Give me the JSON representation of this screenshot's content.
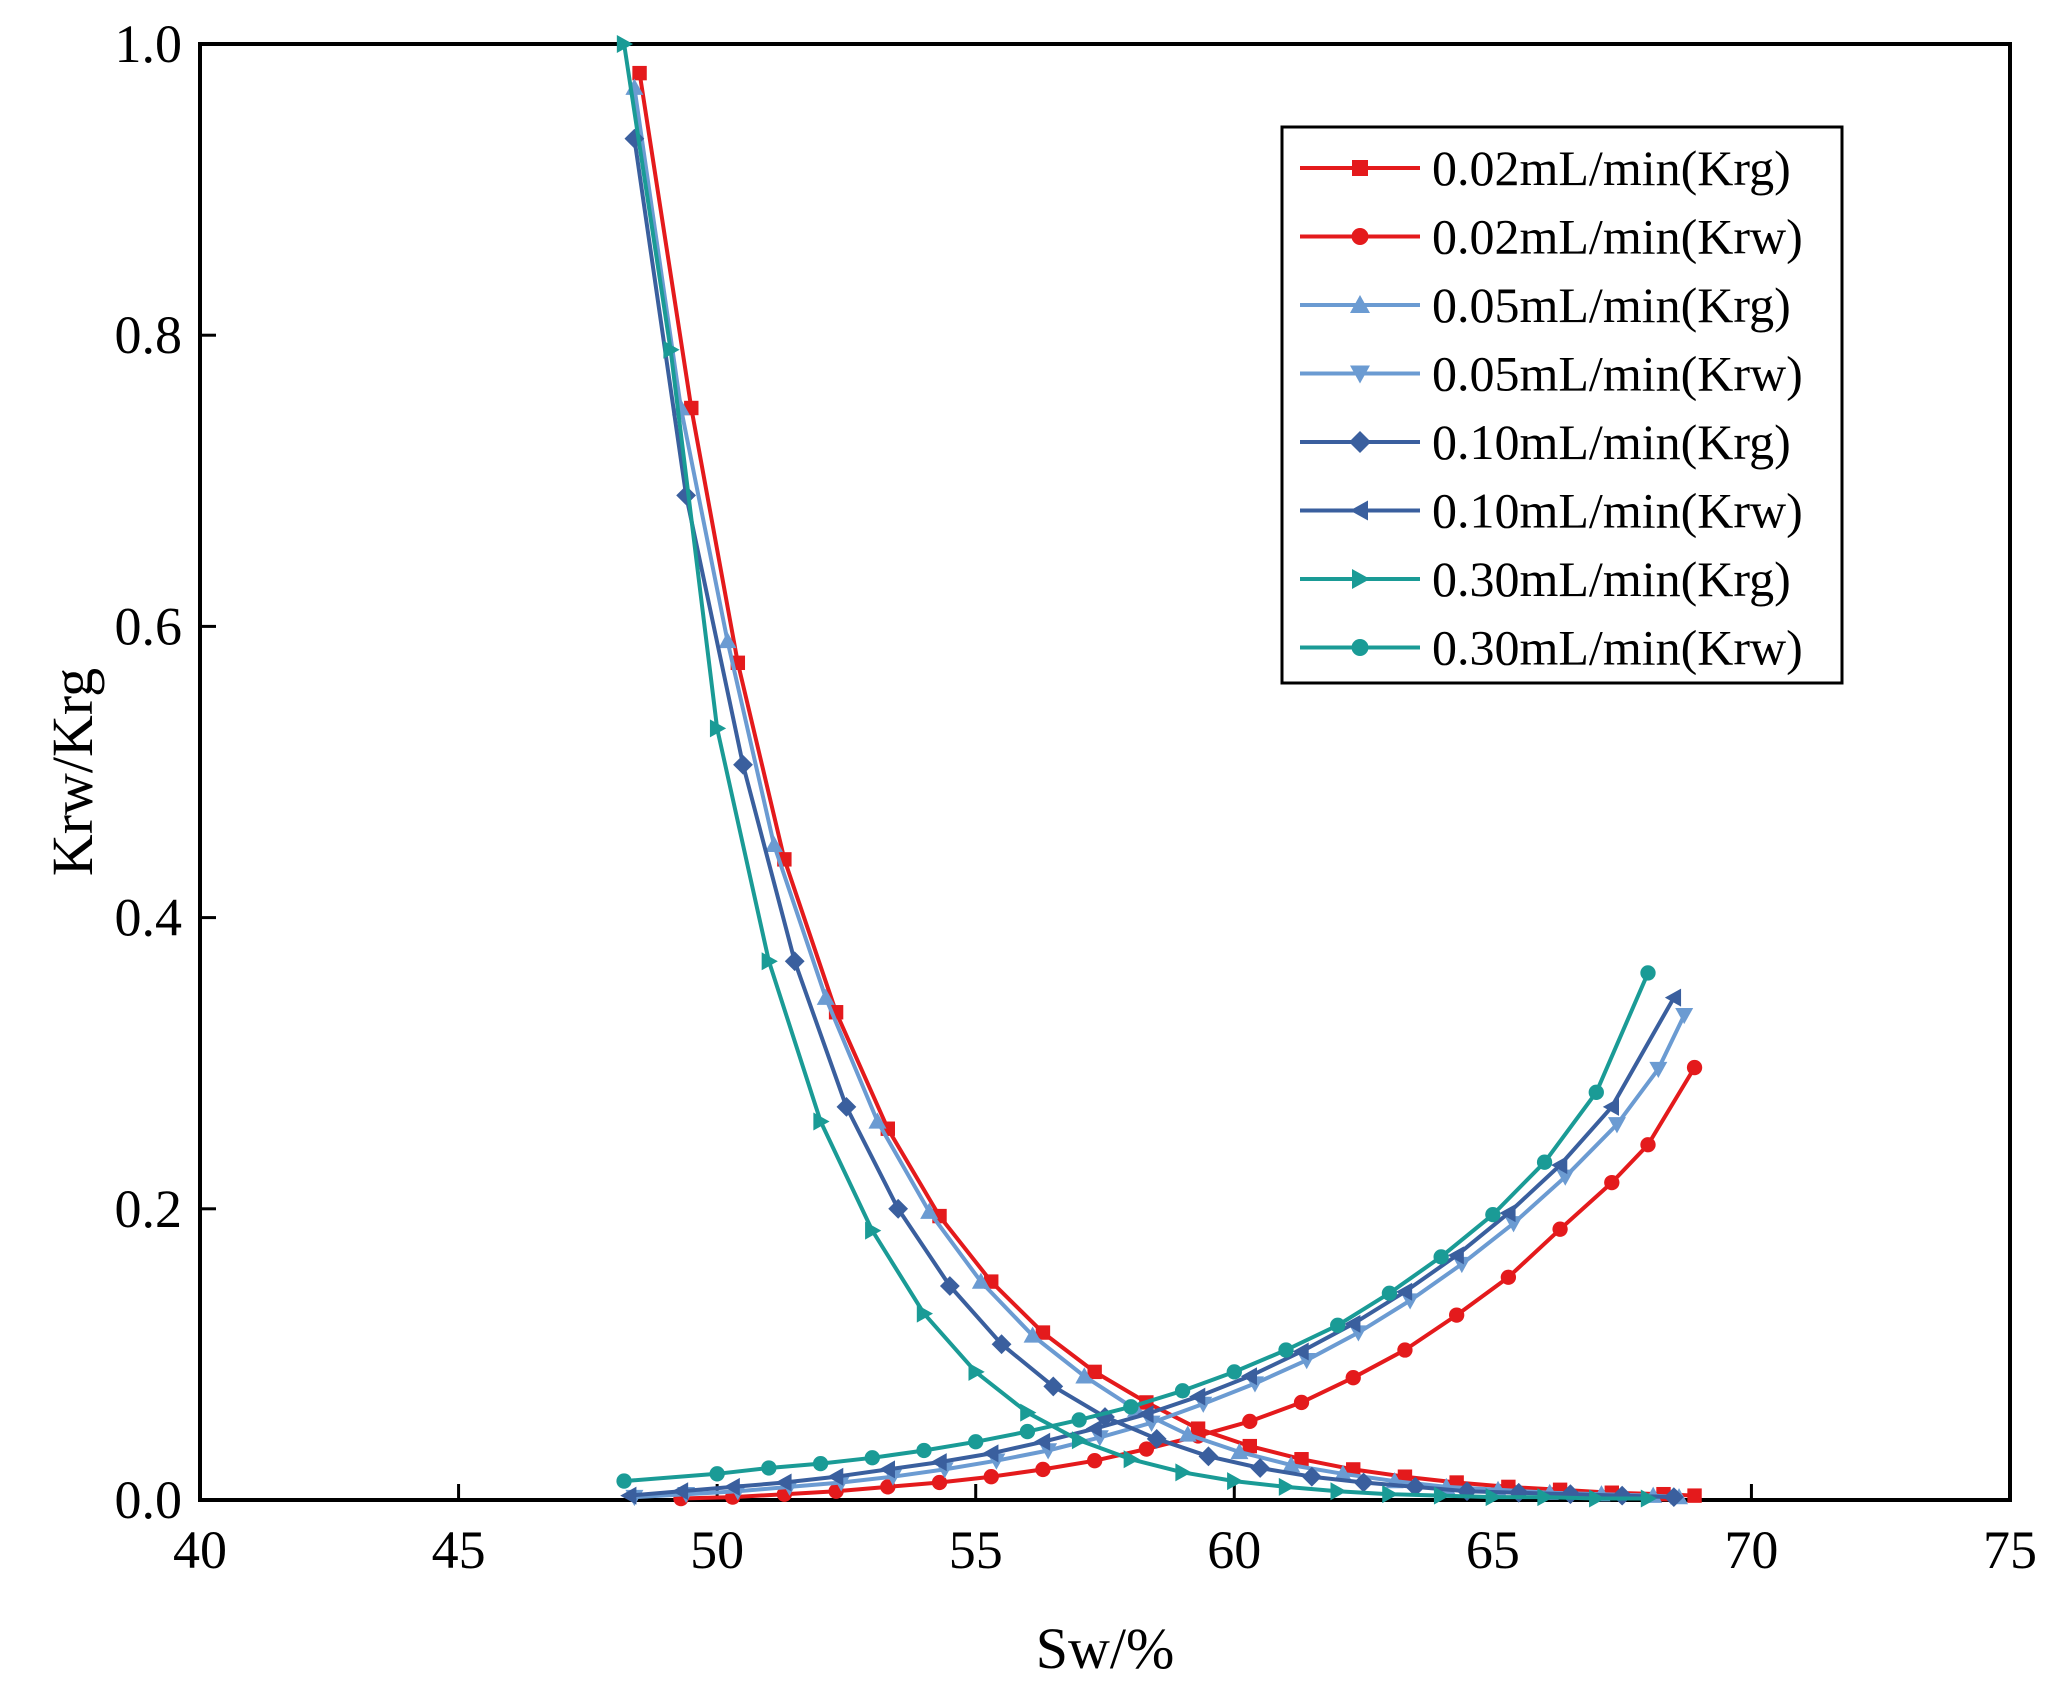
{
  "chart_data": {
    "type": "line",
    "title": "",
    "xlabel": "Sw/%",
    "ylabel": "Krw/Krg",
    "xlim": [
      40,
      75
    ],
    "ylim": [
      0.0,
      1.0
    ],
    "xticks": [
      40,
      45,
      50,
      55,
      60,
      65,
      70,
      75
    ],
    "xtick_labels": [
      "40",
      "45",
      "50",
      "55",
      "60",
      "65",
      "70",
      "75"
    ],
    "yticks": [
      0.0,
      0.2,
      0.4,
      0.6,
      0.8,
      1.0
    ],
    "ytick_labels": [
      "0.0",
      "0.2",
      "0.4",
      "0.6",
      "0.8",
      "1.0"
    ],
    "grid": false,
    "legend_position": "top-right",
    "series": [
      {
        "name": "0.02mL/min(Krg)",
        "color": "#e41a1c",
        "marker": "square",
        "x": [
          48.5,
          49.5,
          50.4,
          51.3,
          52.3,
          53.3,
          54.3,
          55.3,
          56.3,
          57.3,
          58.3,
          59.3,
          60.3,
          61.3,
          62.3,
          63.3,
          64.3,
          65.3,
          66.3,
          67.3,
          68.3,
          68.9
        ],
        "y": [
          0.98,
          0.75,
          0.575,
          0.44,
          0.335,
          0.255,
          0.195,
          0.15,
          0.115,
          0.088,
          0.067,
          0.049,
          0.037,
          0.028,
          0.021,
          0.016,
          0.012,
          0.009,
          0.007,
          0.005,
          0.004,
          0.003
        ]
      },
      {
        "name": "0.02mL/min(Krw)",
        "color": "#e41a1c",
        "marker": "circle",
        "x": [
          49.3,
          50.3,
          51.3,
          52.3,
          53.3,
          54.3,
          55.3,
          56.3,
          57.3,
          58.3,
          59.3,
          60.3,
          61.3,
          62.3,
          63.3,
          64.3,
          65.3,
          66.3,
          67.3,
          68.0,
          68.9
        ],
        "y": [
          0.001,
          0.002,
          0.004,
          0.006,
          0.009,
          0.012,
          0.016,
          0.021,
          0.027,
          0.035,
          0.044,
          0.054,
          0.067,
          0.084,
          0.103,
          0.127,
          0.153,
          0.186,
          0.218,
          0.244,
          0.297
        ]
      },
      {
        "name": "0.05mL/min(Krg)",
        "color": "#6b9bd2",
        "marker": "triangle-up",
        "x": [
          48.4,
          49.3,
          50.2,
          51.1,
          52.1,
          53.1,
          54.1,
          55.1,
          56.1,
          57.1,
          58.1,
          59.1,
          60.1,
          61.1,
          62.1,
          63.1,
          64.1,
          65.1,
          66.1,
          67.1,
          68.1,
          68.6
        ],
        "y": [
          0.97,
          0.75,
          0.59,
          0.45,
          0.345,
          0.26,
          0.198,
          0.15,
          0.113,
          0.085,
          0.062,
          0.045,
          0.033,
          0.024,
          0.018,
          0.013,
          0.009,
          0.007,
          0.005,
          0.004,
          0.003,
          0.002
        ]
      },
      {
        "name": "0.05mL/min(Krw)",
        "color": "#6b9bd2",
        "marker": "triangle-down",
        "x": [
          48.4,
          49.4,
          50.4,
          51.4,
          52.4,
          53.4,
          54.4,
          55.4,
          56.4,
          57.4,
          58.4,
          59.4,
          60.4,
          61.4,
          62.4,
          63.4,
          64.4,
          65.4,
          66.4,
          67.4,
          68.2,
          68.7
        ],
        "y": [
          0.002,
          0.004,
          0.006,
          0.009,
          0.012,
          0.016,
          0.021,
          0.027,
          0.034,
          0.043,
          0.053,
          0.066,
          0.08,
          0.096,
          0.115,
          0.137,
          0.162,
          0.19,
          0.222,
          0.258,
          0.296,
          0.333
        ]
      },
      {
        "name": "0.10mL/min(Krg)",
        "color": "#3a5f9e",
        "marker": "diamond",
        "x": [
          48.4,
          49.4,
          50.5,
          51.5,
          52.5,
          53.5,
          54.5,
          55.5,
          56.5,
          57.5,
          58.5,
          59.5,
          60.5,
          61.5,
          62.5,
          63.5,
          64.5,
          65.5,
          66.5,
          67.5,
          68.5
        ],
        "y": [
          0.935,
          0.69,
          0.505,
          0.37,
          0.27,
          0.2,
          0.147,
          0.107,
          0.078,
          0.057,
          0.042,
          0.03,
          0.022,
          0.016,
          0.012,
          0.009,
          0.006,
          0.005,
          0.004,
          0.003,
          0.002
        ]
      },
      {
        "name": "0.10mL/min(Krw)",
        "color": "#3a5f9e",
        "marker": "triangle-left",
        "x": [
          48.3,
          49.3,
          50.3,
          51.3,
          52.3,
          53.3,
          54.3,
          55.3,
          56.3,
          57.3,
          58.3,
          59.3,
          60.3,
          61.3,
          62.3,
          63.3,
          64.3,
          65.3,
          66.3,
          67.3,
          68.5
        ],
        "y": [
          0.003,
          0.006,
          0.009,
          0.012,
          0.016,
          0.021,
          0.026,
          0.032,
          0.04,
          0.049,
          0.059,
          0.071,
          0.085,
          0.102,
          0.121,
          0.143,
          0.168,
          0.197,
          0.23,
          0.27,
          0.345
        ]
      },
      {
        "name": "0.30mL/min(Krg)",
        "color": "#1a9b96",
        "marker": "triangle-right",
        "x": [
          48.2,
          49.1,
          50.0,
          51.0,
          52.0,
          53.0,
          54.0,
          55.0,
          56.0,
          57.0,
          58.0,
          59.0,
          60.0,
          61.0,
          62.0,
          63.0,
          64.0,
          65.0,
          66.0,
          67.0,
          68.0
        ],
        "y": [
          1.0,
          0.79,
          0.53,
          0.37,
          0.26,
          0.185,
          0.128,
          0.088,
          0.06,
          0.041,
          0.028,
          0.019,
          0.013,
          0.009,
          0.006,
          0.004,
          0.003,
          0.002,
          0.002,
          0.001,
          0.001
        ]
      },
      {
        "name": "0.30mL/min(Krw)",
        "color": "#1a9b96",
        "marker": "circle",
        "x": [
          48.2,
          50.0,
          51.0,
          52.0,
          53.0,
          54.0,
          55.0,
          56.0,
          57.0,
          58.0,
          59.0,
          60.0,
          61.0,
          62.0,
          63.0,
          64.0,
          65.0,
          66.0,
          67.0,
          68.0
        ],
        "y": [
          0.013,
          0.018,
          0.022,
          0.025,
          0.029,
          0.034,
          0.04,
          0.047,
          0.055,
          0.064,
          0.075,
          0.088,
          0.103,
          0.12,
          0.142,
          0.167,
          0.196,
          0.232,
          0.28,
          0.362
        ]
      }
    ]
  }
}
